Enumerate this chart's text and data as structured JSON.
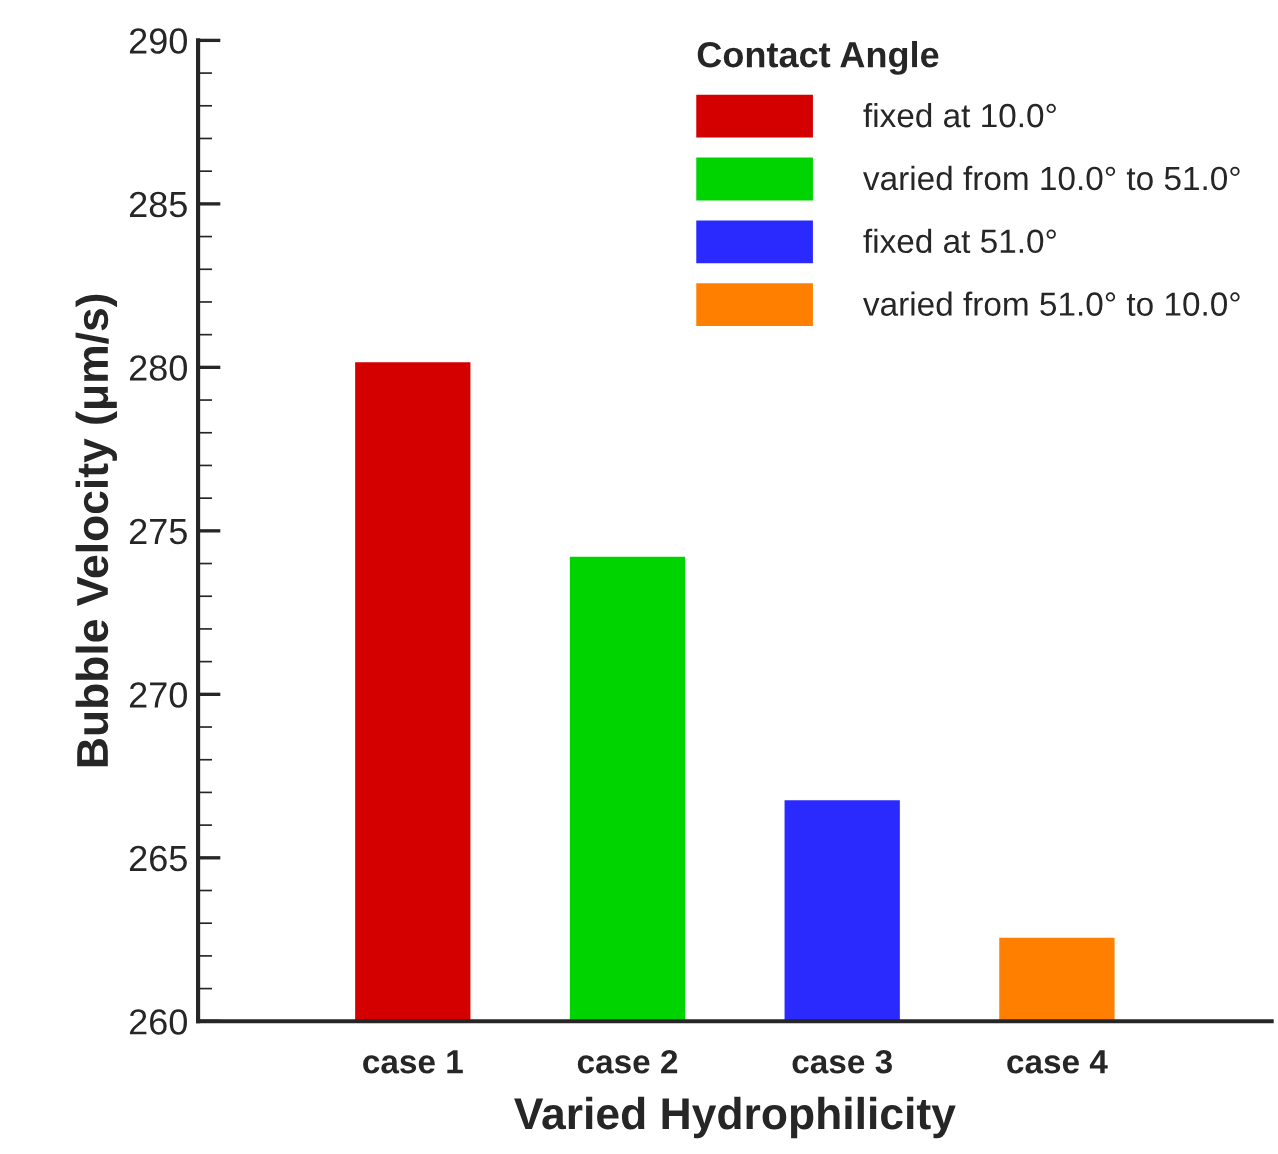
{
  "chart_data": {
    "type": "bar",
    "xlabel": "Varied Hydrophilicity",
    "ylabel": "Bubble Velocity (μm/s)",
    "legend_title": "Contact Angle",
    "categories": [
      "case 1",
      "case 2",
      "case 3",
      "case 4"
    ],
    "series": [
      {
        "name": "fixed at 10.0°",
        "color": "#d40000",
        "values": [
          280.2,
          null,
          null,
          null
        ]
      },
      {
        "name": "varied from 10.0° to 51.0°",
        "color": "#00d400",
        "values": [
          null,
          274.25,
          null,
          null
        ]
      },
      {
        "name": "fixed at 51.0°",
        "color": "#2a2aff",
        "values": [
          null,
          null,
          266.8,
          null
        ]
      },
      {
        "name": "varied from 51.0° to 10.0°",
        "color": "#ff7f00",
        "values": [
          null,
          null,
          null,
          262.6
        ]
      }
    ],
    "ylim": [
      260,
      290
    ],
    "yticks": [
      260,
      265,
      270,
      275,
      280,
      285,
      290
    ],
    "legend": "top right",
    "grid": false
  }
}
